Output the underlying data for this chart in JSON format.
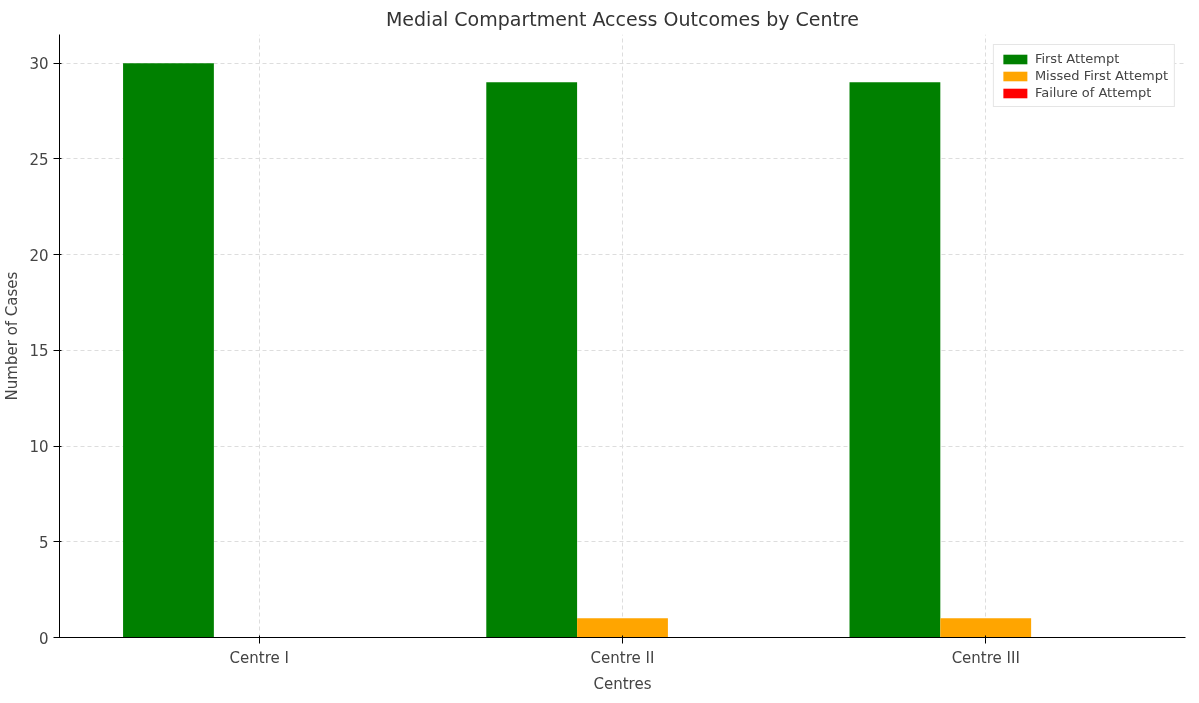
{
  "chart_data": {
    "type": "bar",
    "title": "Medial Compartment Access Outcomes by Centre",
    "xlabel": "Centres",
    "ylabel": "Number of Cases",
    "categories": [
      "Centre I",
      "Centre II",
      "Centre III"
    ],
    "series": [
      {
        "name": "First Attempt",
        "color": "#008000",
        "values": [
          30,
          29,
          29
        ]
      },
      {
        "name": "Missed First Attempt",
        "color": "#ffa500",
        "values": [
          0,
          1,
          1
        ]
      },
      {
        "name": "Failure of Attempt",
        "color": "#ff0000",
        "values": [
          0,
          0,
          0
        ]
      }
    ],
    "ylim": [
      0,
      31.5
    ],
    "yticks": [
      0,
      5,
      10,
      15,
      20,
      25,
      30
    ],
    "grid": true,
    "legend": "top right"
  }
}
